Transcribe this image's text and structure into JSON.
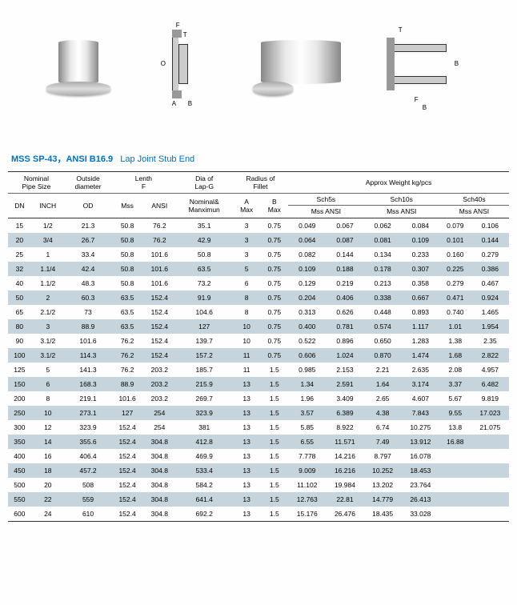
{
  "image_alt": {
    "photo": "Lap Joint Stub End",
    "drawing": "Technical drawing with dimensions"
  },
  "drawing_labels": {
    "F": "F",
    "T": "T",
    "O": "O",
    "A": "A",
    "B": "B"
  },
  "title": {
    "code": "MSS SP-43，ANSI B16.9",
    "desc": "Lap Joint Stub End"
  },
  "headers": {
    "nominal_pipe_size": "Nominal\nPipe Size",
    "outside_diameter": "Outside\ndiameter",
    "length": "Lenth\nF",
    "dia_lap_g": "Dia of\nLap-G",
    "radius_fillet": "Radius of\nFillet",
    "approx_weight": "Approx Weight kg/pcs",
    "dn": "DN",
    "inch": "INCH",
    "od": "OD",
    "mss": "Mss",
    "ansi": "ANSI",
    "nominal_maximum": "Nominal&\nManximun",
    "a_max": "A\nMax",
    "b_max": "B\nMax",
    "sch5s": "Sch5s",
    "sch10s": "Sch10s",
    "sch40s": "Sch40s",
    "mss_ansi": "Mss ANSI"
  },
  "rows": [
    {
      "dn": "15",
      "inch": "1/2",
      "od": "21.3",
      "lm": "50.8",
      "la": "76.2",
      "dg": "35.1",
      "am": "3",
      "bm": "0.75",
      "s5m": "0.049",
      "s5a": "0.067",
      "s10m": "0.062",
      "s10a": "0.084",
      "s40m": "0.079",
      "s40a": "0.106"
    },
    {
      "dn": "20",
      "inch": "3/4",
      "od": "26.7",
      "lm": "50.8",
      "la": "76.2",
      "dg": "42.9",
      "am": "3",
      "bm": "0.75",
      "s5m": "0.064",
      "s5a": "0.087",
      "s10m": "0.081",
      "s10a": "0.109",
      "s40m": "0.101",
      "s40a": "0.144"
    },
    {
      "dn": "25",
      "inch": "1",
      "od": "33.4",
      "lm": "50.8",
      "la": "101.6",
      "dg": "50.8",
      "am": "3",
      "bm": "0.75",
      "s5m": "0.082",
      "s5a": "0.144",
      "s10m": "0.134",
      "s10a": "0.233",
      "s40m": "0.160",
      "s40a": "0.279"
    },
    {
      "dn": "32",
      "inch": "1.1/4",
      "od": "42.4",
      "lm": "50.8",
      "la": "101.6",
      "dg": "63.5",
      "am": "5",
      "bm": "0.75",
      "s5m": "0.109",
      "s5a": "0.188",
      "s10m": "0.178",
      "s10a": "0.307",
      "s40m": "0.225",
      "s40a": "0.386"
    },
    {
      "dn": "40",
      "inch": "1.1/2",
      "od": "48.3",
      "lm": "50.8",
      "la": "101.6",
      "dg": "73.2",
      "am": "6",
      "bm": "0.75",
      "s5m": "0.129",
      "s5a": "0.219",
      "s10m": "0.213",
      "s10a": "0.358",
      "s40m": "0.279",
      "s40a": "0.467"
    },
    {
      "dn": "50",
      "inch": "2",
      "od": "60.3",
      "lm": "63.5",
      "la": "152.4",
      "dg": "91.9",
      "am": "8",
      "bm": "0.75",
      "s5m": "0.204",
      "s5a": "0.406",
      "s10m": "0.338",
      "s10a": "0.667",
      "s40m": "0.471",
      "s40a": "0.924"
    },
    {
      "dn": "65",
      "inch": "2.1/2",
      "od": "73",
      "lm": "63.5",
      "la": "152.4",
      "dg": "104.6",
      "am": "8",
      "bm": "0.75",
      "s5m": "0.313",
      "s5a": "0.626",
      "s10m": "0.448",
      "s10a": "0.893",
      "s40m": "0.740",
      "s40a": "1.465"
    },
    {
      "dn": "80",
      "inch": "3",
      "od": "88.9",
      "lm": "63.5",
      "la": "152.4",
      "dg": "127",
      "am": "10",
      "bm": "0.75",
      "s5m": "0.400",
      "s5a": "0.781",
      "s10m": "0.574",
      "s10a": "1.117",
      "s40m": "1.01",
      "s40a": "1.954"
    },
    {
      "dn": "90",
      "inch": "3.1/2",
      "od": "101.6",
      "lm": "76.2",
      "la": "152.4",
      "dg": "139.7",
      "am": "10",
      "bm": "0.75",
      "s5m": "0.522",
      "s5a": "0.896",
      "s10m": "0.650",
      "s10a": "1.283",
      "s40m": "1.38",
      "s40a": "2.35"
    },
    {
      "dn": "100",
      "inch": "3.1/2",
      "od": "114.3",
      "lm": "76.2",
      "la": "152.4",
      "dg": "157.2",
      "am": "11",
      "bm": "0.75",
      "s5m": "0.606",
      "s5a": "1.024",
      "s10m": "0.870",
      "s10a": "1.474",
      "s40m": "1.68",
      "s40a": "2.822"
    },
    {
      "dn": "125",
      "inch": "5",
      "od": "141.3",
      "lm": "76.2",
      "la": "203.2",
      "dg": "185.7",
      "am": "11",
      "bm": "1.5",
      "s5m": "0.985",
      "s5a": "2.153",
      "s10m": "2.21",
      "s10a": "2.635",
      "s40m": "2.08",
      "s40a": "4.957"
    },
    {
      "dn": "150",
      "inch": "6",
      "od": "168.3",
      "lm": "88.9",
      "la": "203.2",
      "dg": "215.9",
      "am": "13",
      "bm": "1.5",
      "s5m": "1.34",
      "s5a": "2.591",
      "s10m": "1.64",
      "s10a": "3.174",
      "s40m": "3.37",
      "s40a": "6.482"
    },
    {
      "dn": "200",
      "inch": "8",
      "od": "219.1",
      "lm": "101.6",
      "la": "203.2",
      "dg": "269.7",
      "am": "13",
      "bm": "1.5",
      "s5m": "1.96",
      "s5a": "3.409",
      "s10m": "2.65",
      "s10a": "4.607",
      "s40m": "5.67",
      "s40a": "9.819"
    },
    {
      "dn": "250",
      "inch": "10",
      "od": "273.1",
      "lm": "127",
      "la": "254",
      "dg": "323.9",
      "am": "13",
      "bm": "1.5",
      "s5m": "3.57",
      "s5a": "6.389",
      "s10m": "4.38",
      "s10a": "7.843",
      "s40m": "9.55",
      "s40a": "17.023"
    },
    {
      "dn": "300",
      "inch": "12",
      "od": "323.9",
      "lm": "152.4",
      "la": "254",
      "dg": "381",
      "am": "13",
      "bm": "1.5",
      "s5m": "5.85",
      "s5a": "8.922",
      "s10m": "6.74",
      "s10a": "10.275",
      "s40m": "13.8",
      "s40a": "21.075"
    },
    {
      "dn": "350",
      "inch": "14",
      "od": "355.6",
      "lm": "152.4",
      "la": "304.8",
      "dg": "412.8",
      "am": "13",
      "bm": "1.5",
      "s5m": "6.55",
      "s5a": "11.571",
      "s10m": "7.49",
      "s10a": "13.912",
      "s40m": "16.88",
      "s40a": ""
    },
    {
      "dn": "400",
      "inch": "16",
      "od": "406.4",
      "lm": "152.4",
      "la": "304.8",
      "dg": "469.9",
      "am": "13",
      "bm": "1.5",
      "s5m": "7.778",
      "s5a": "14.216",
      "s10m": "8.797",
      "s10a": "16.078",
      "s40m": "",
      "s40a": ""
    },
    {
      "dn": "450",
      "inch": "18",
      "od": "457.2",
      "lm": "152.4",
      "la": "304.8",
      "dg": "533.4",
      "am": "13",
      "bm": "1.5",
      "s5m": "9.009",
      "s5a": "16.216",
      "s10m": "10.252",
      "s10a": "18.453",
      "s40m": "",
      "s40a": ""
    },
    {
      "dn": "500",
      "inch": "20",
      "od": "508",
      "lm": "152.4",
      "la": "304.8",
      "dg": "584.2",
      "am": "13",
      "bm": "1.5",
      "s5m": "11.102",
      "s5a": "19.984",
      "s10m": "13.202",
      "s10a": "23.764",
      "s40m": "",
      "s40a": ""
    },
    {
      "dn": "550",
      "inch": "22",
      "od": "559",
      "lm": "152.4",
      "la": "304.8",
      "dg": "641.4",
      "am": "13",
      "bm": "1.5",
      "s5m": "12.763",
      "s5a": "22.81",
      "s10m": "14.779",
      "s10a": "26.413",
      "s40m": "",
      "s40a": ""
    },
    {
      "dn": "600",
      "inch": "24",
      "od": "610",
      "lm": "152.4",
      "la": "304.8",
      "dg": "692.2",
      "am": "13",
      "bm": "1.5",
      "s5m": "15.176",
      "s5a": "26.476",
      "s10m": "18.435",
      "s10a": "33.028",
      "s40m": "",
      "s40a": ""
    }
  ]
}
